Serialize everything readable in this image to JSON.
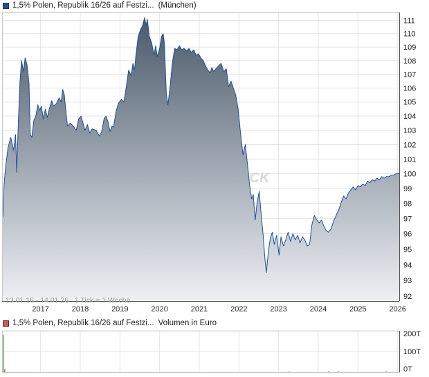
{
  "colors": {
    "price_line": "#1f4e9c",
    "fill_top": "#4a5a6a",
    "fill_bottom": "#eef0f4",
    "volume_swatch": "#d9534f",
    "price_swatch": "#1f4e9c",
    "grid": "#e3e3e3",
    "watermark": "#d8d8d8"
  },
  "price_chart": {
    "legend": {
      "name": "1,5% Polen, Republik 16/26 auf Festzi...",
      "venue": "(München)"
    },
    "info_text": "13.01.16 - 14.01.26   1 Tick = 1 Woche",
    "watermark": "CK"
  },
  "volume_chart": {
    "legend": {
      "name": "1,5% Polen, Republik 16/26 auf Festzi...",
      "unit": "Volumen in Euro"
    }
  },
  "chart_data": [
    {
      "type": "area",
      "title": "",
      "xlabel": "",
      "ylabel": "",
      "x_ticks": [
        "2017",
        "2018",
        "2019",
        "2020",
        "2021",
        "2022",
        "2023",
        "2024",
        "2025",
        "2026"
      ],
      "y_ticks": [
        "92",
        "93",
        "94",
        "95",
        "96",
        "97",
        "98",
        "99",
        "100",
        "101",
        "102",
        "103",
        "104",
        "105",
        "106",
        "107",
        "108",
        "109",
        "110",
        "111"
      ],
      "xlim": [
        2016.03,
        2026.04
      ],
      "ylim": [
        91.7,
        111.6
      ],
      "y_scale": "log",
      "grid": true,
      "series": [
        {
          "name": "1,5% Polen, Republik 16/26 auf Festzi...",
          "points": [
            [
              2016.03,
              98.0
            ],
            [
              2016.05,
              97.1
            ],
            [
              2016.08,
              99.3
            ],
            [
              2016.12,
              100.5
            ],
            [
              2016.18,
              101.8
            ],
            [
              2016.25,
              102.5
            ],
            [
              2016.32,
              101.6
            ],
            [
              2016.37,
              102.7
            ],
            [
              2016.4,
              100.1
            ],
            [
              2016.44,
              103.6
            ],
            [
              2016.48,
              106.4
            ],
            [
              2016.52,
              108.0
            ],
            [
              2016.57,
              107.2
            ],
            [
              2016.61,
              108.2
            ],
            [
              2016.66,
              107.7
            ],
            [
              2016.71,
              106.3
            ],
            [
              2016.74,
              102.7
            ],
            [
              2016.78,
              102.5
            ],
            [
              2016.83,
              103.7
            ],
            [
              2016.88,
              104.0
            ],
            [
              2016.93,
              104.8
            ],
            [
              2016.98,
              104.4
            ],
            [
              2017.02,
              104.7
            ],
            [
              2017.07,
              103.8
            ],
            [
              2017.12,
              104.5
            ],
            [
              2017.17,
              103.9
            ],
            [
              2017.22,
              104.5
            ],
            [
              2017.28,
              105.1
            ],
            [
              2017.33,
              104.7
            ],
            [
              2017.4,
              104.9
            ],
            [
              2017.47,
              105.3
            ],
            [
              2017.52,
              105.0
            ],
            [
              2017.56,
              105.9
            ],
            [
              2017.6,
              105.5
            ],
            [
              2017.64,
              104.3
            ],
            [
              2017.68,
              103.3
            ],
            [
              2017.75,
              103.5
            ],
            [
              2017.82,
              103.3
            ],
            [
              2017.9,
              103.0
            ],
            [
              2017.96,
              103.8
            ],
            [
              2018.02,
              104.0
            ],
            [
              2018.07,
              103.5
            ],
            [
              2018.12,
              103.0
            ],
            [
              2018.18,
              103.4
            ],
            [
              2018.24,
              102.8
            ],
            [
              2018.3,
              103.1
            ],
            [
              2018.4,
              103.0
            ],
            [
              2018.48,
              102.6
            ],
            [
              2018.54,
              102.9
            ],
            [
              2018.6,
              103.8
            ],
            [
              2018.65,
              104.0
            ],
            [
              2018.7,
              103.6
            ],
            [
              2018.75,
              102.9
            ],
            [
              2018.8,
              103.3
            ],
            [
              2018.84,
              103.2
            ],
            [
              2018.9,
              104.3
            ],
            [
              2018.96,
              104.9
            ],
            [
              2019.04,
              105.2
            ],
            [
              2019.1,
              105.0
            ],
            [
              2019.16,
              106.1
            ],
            [
              2019.22,
              107.3
            ],
            [
              2019.28,
              106.9
            ],
            [
              2019.33,
              107.8
            ],
            [
              2019.37,
              107.3
            ],
            [
              2019.4,
              108.3
            ],
            [
              2019.46,
              109.8
            ],
            [
              2019.52,
              110.3
            ],
            [
              2019.57,
              110.6
            ],
            [
              2019.62,
              111.2
            ],
            [
              2019.66,
              110.6
            ],
            [
              2019.69,
              111.1
            ],
            [
              2019.74,
              109.8
            ],
            [
              2019.8,
              109.3
            ],
            [
              2019.86,
              108.4
            ],
            [
              2019.9,
              109.1
            ],
            [
              2019.94,
              108.3
            ],
            [
              2020.0,
              108.9
            ],
            [
              2020.05,
              109.8
            ],
            [
              2020.09,
              110.0
            ],
            [
              2020.12,
              109.3
            ],
            [
              2020.17,
              105.6
            ],
            [
              2020.21,
              104.8
            ],
            [
              2020.26,
              106.0
            ],
            [
              2020.32,
              107.8
            ],
            [
              2020.38,
              108.9
            ],
            [
              2020.44,
              108.8
            ],
            [
              2020.5,
              109.1
            ],
            [
              2020.56,
              108.8
            ],
            [
              2020.62,
              108.9
            ],
            [
              2020.68,
              108.7
            ],
            [
              2020.74,
              108.9
            ],
            [
              2020.8,
              108.6
            ],
            [
              2020.86,
              108.8
            ],
            [
              2020.92,
              108.4
            ],
            [
              2020.98,
              108.5
            ],
            [
              2021.04,
              108.2
            ],
            [
              2021.1,
              108.0
            ],
            [
              2021.16,
              107.6
            ],
            [
              2021.22,
              107.3
            ],
            [
              2021.27,
              107.1
            ],
            [
              2021.32,
              107.5
            ],
            [
              2021.36,
              107.2
            ],
            [
              2021.42,
              107.4
            ],
            [
              2021.48,
              107.6
            ],
            [
              2021.55,
              107.8
            ],
            [
              2021.62,
              107.2
            ],
            [
              2021.68,
              107.4
            ],
            [
              2021.74,
              106.1
            ],
            [
              2021.8,
              106.5
            ],
            [
              2021.86,
              106.0
            ],
            [
              2021.92,
              105.5
            ],
            [
              2021.98,
              104.5
            ],
            [
              2022.04,
              102.8
            ],
            [
              2022.1,
              101.3
            ],
            [
              2022.16,
              102.0
            ],
            [
              2022.22,
              100.5
            ],
            [
              2022.27,
              99.2
            ],
            [
              2022.32,
              98.3
            ],
            [
              2022.36,
              98.6
            ],
            [
              2022.41,
              96.9
            ],
            [
              2022.46,
              98.1
            ],
            [
              2022.51,
              98.8
            ],
            [
              2022.56,
              97.3
            ],
            [
              2022.61,
              95.9
            ],
            [
              2022.65,
              94.5
            ],
            [
              2022.69,
              93.5
            ],
            [
              2022.74,
              94.8
            ],
            [
              2022.79,
              95.7
            ],
            [
              2022.84,
              96.1
            ],
            [
              2022.89,
              95.3
            ],
            [
              2022.95,
              95.9
            ],
            [
              2023.01,
              94.6
            ],
            [
              2023.06,
              95.8
            ],
            [
              2023.12,
              95.2
            ],
            [
              2023.18,
              95.6
            ],
            [
              2023.24,
              96.1
            ],
            [
              2023.3,
              95.5
            ],
            [
              2023.36,
              96.0
            ],
            [
              2023.42,
              95.6
            ],
            [
              2023.48,
              95.9
            ],
            [
              2023.54,
              95.4
            ],
            [
              2023.6,
              95.8
            ],
            [
              2023.66,
              95.6
            ],
            [
              2023.72,
              95.2
            ],
            [
              2023.78,
              95.3
            ],
            [
              2023.84,
              96.6
            ],
            [
              2023.9,
              97.2
            ],
            [
              2023.96,
              96.9
            ],
            [
              2024.02,
              96.7
            ],
            [
              2024.08,
              96.9
            ],
            [
              2024.14,
              96.5
            ],
            [
              2024.2,
              96.2
            ],
            [
              2024.26,
              96.1
            ],
            [
              2024.32,
              96.3
            ],
            [
              2024.38,
              96.8
            ],
            [
              2024.45,
              97.2
            ],
            [
              2024.52,
              97.6
            ],
            [
              2024.58,
              98.1
            ],
            [
              2024.64,
              98.5
            ],
            [
              2024.7,
              98.3
            ],
            [
              2024.76,
              98.7
            ],
            [
              2024.82,
              98.9
            ],
            [
              2024.88,
              99.1
            ],
            [
              2024.94,
              98.9
            ],
            [
              2025.0,
              99.2
            ],
            [
              2025.06,
              99.1
            ],
            [
              2025.12,
              99.3
            ],
            [
              2025.18,
              99.2
            ],
            [
              2025.24,
              99.5
            ],
            [
              2025.3,
              99.4
            ],
            [
              2025.36,
              99.6
            ],
            [
              2025.42,
              99.5
            ],
            [
              2025.48,
              99.7
            ],
            [
              2025.54,
              99.6
            ],
            [
              2025.6,
              99.8
            ],
            [
              2025.66,
              99.7
            ],
            [
              2025.72,
              99.8
            ],
            [
              2025.78,
              99.8
            ],
            [
              2025.84,
              99.9
            ],
            [
              2025.9,
              99.9
            ],
            [
              2025.96,
              100.0
            ],
            [
              2026.02,
              100.0
            ],
            [
              2026.04,
              100.0
            ]
          ]
        }
      ]
    },
    {
      "type": "bar",
      "title": "",
      "xlabel": "",
      "ylabel": "",
      "y_ticks": [
        "0T",
        "100T",
        "200T"
      ],
      "xlim": [
        2016.03,
        2026.04
      ],
      "ylim": [
        0,
        200
      ],
      "grid": true,
      "series": [
        {
          "name": "Volumen in Euro",
          "points": [
            [
              2016.05,
              180
            ],
            [
              2016.09,
              15
            ],
            [
              2023.25,
              3
            ],
            [
              2024.25,
              4
            ],
            [
              2024.5,
              3
            ],
            [
              2025.7,
              3
            ]
          ]
        }
      ]
    }
  ]
}
